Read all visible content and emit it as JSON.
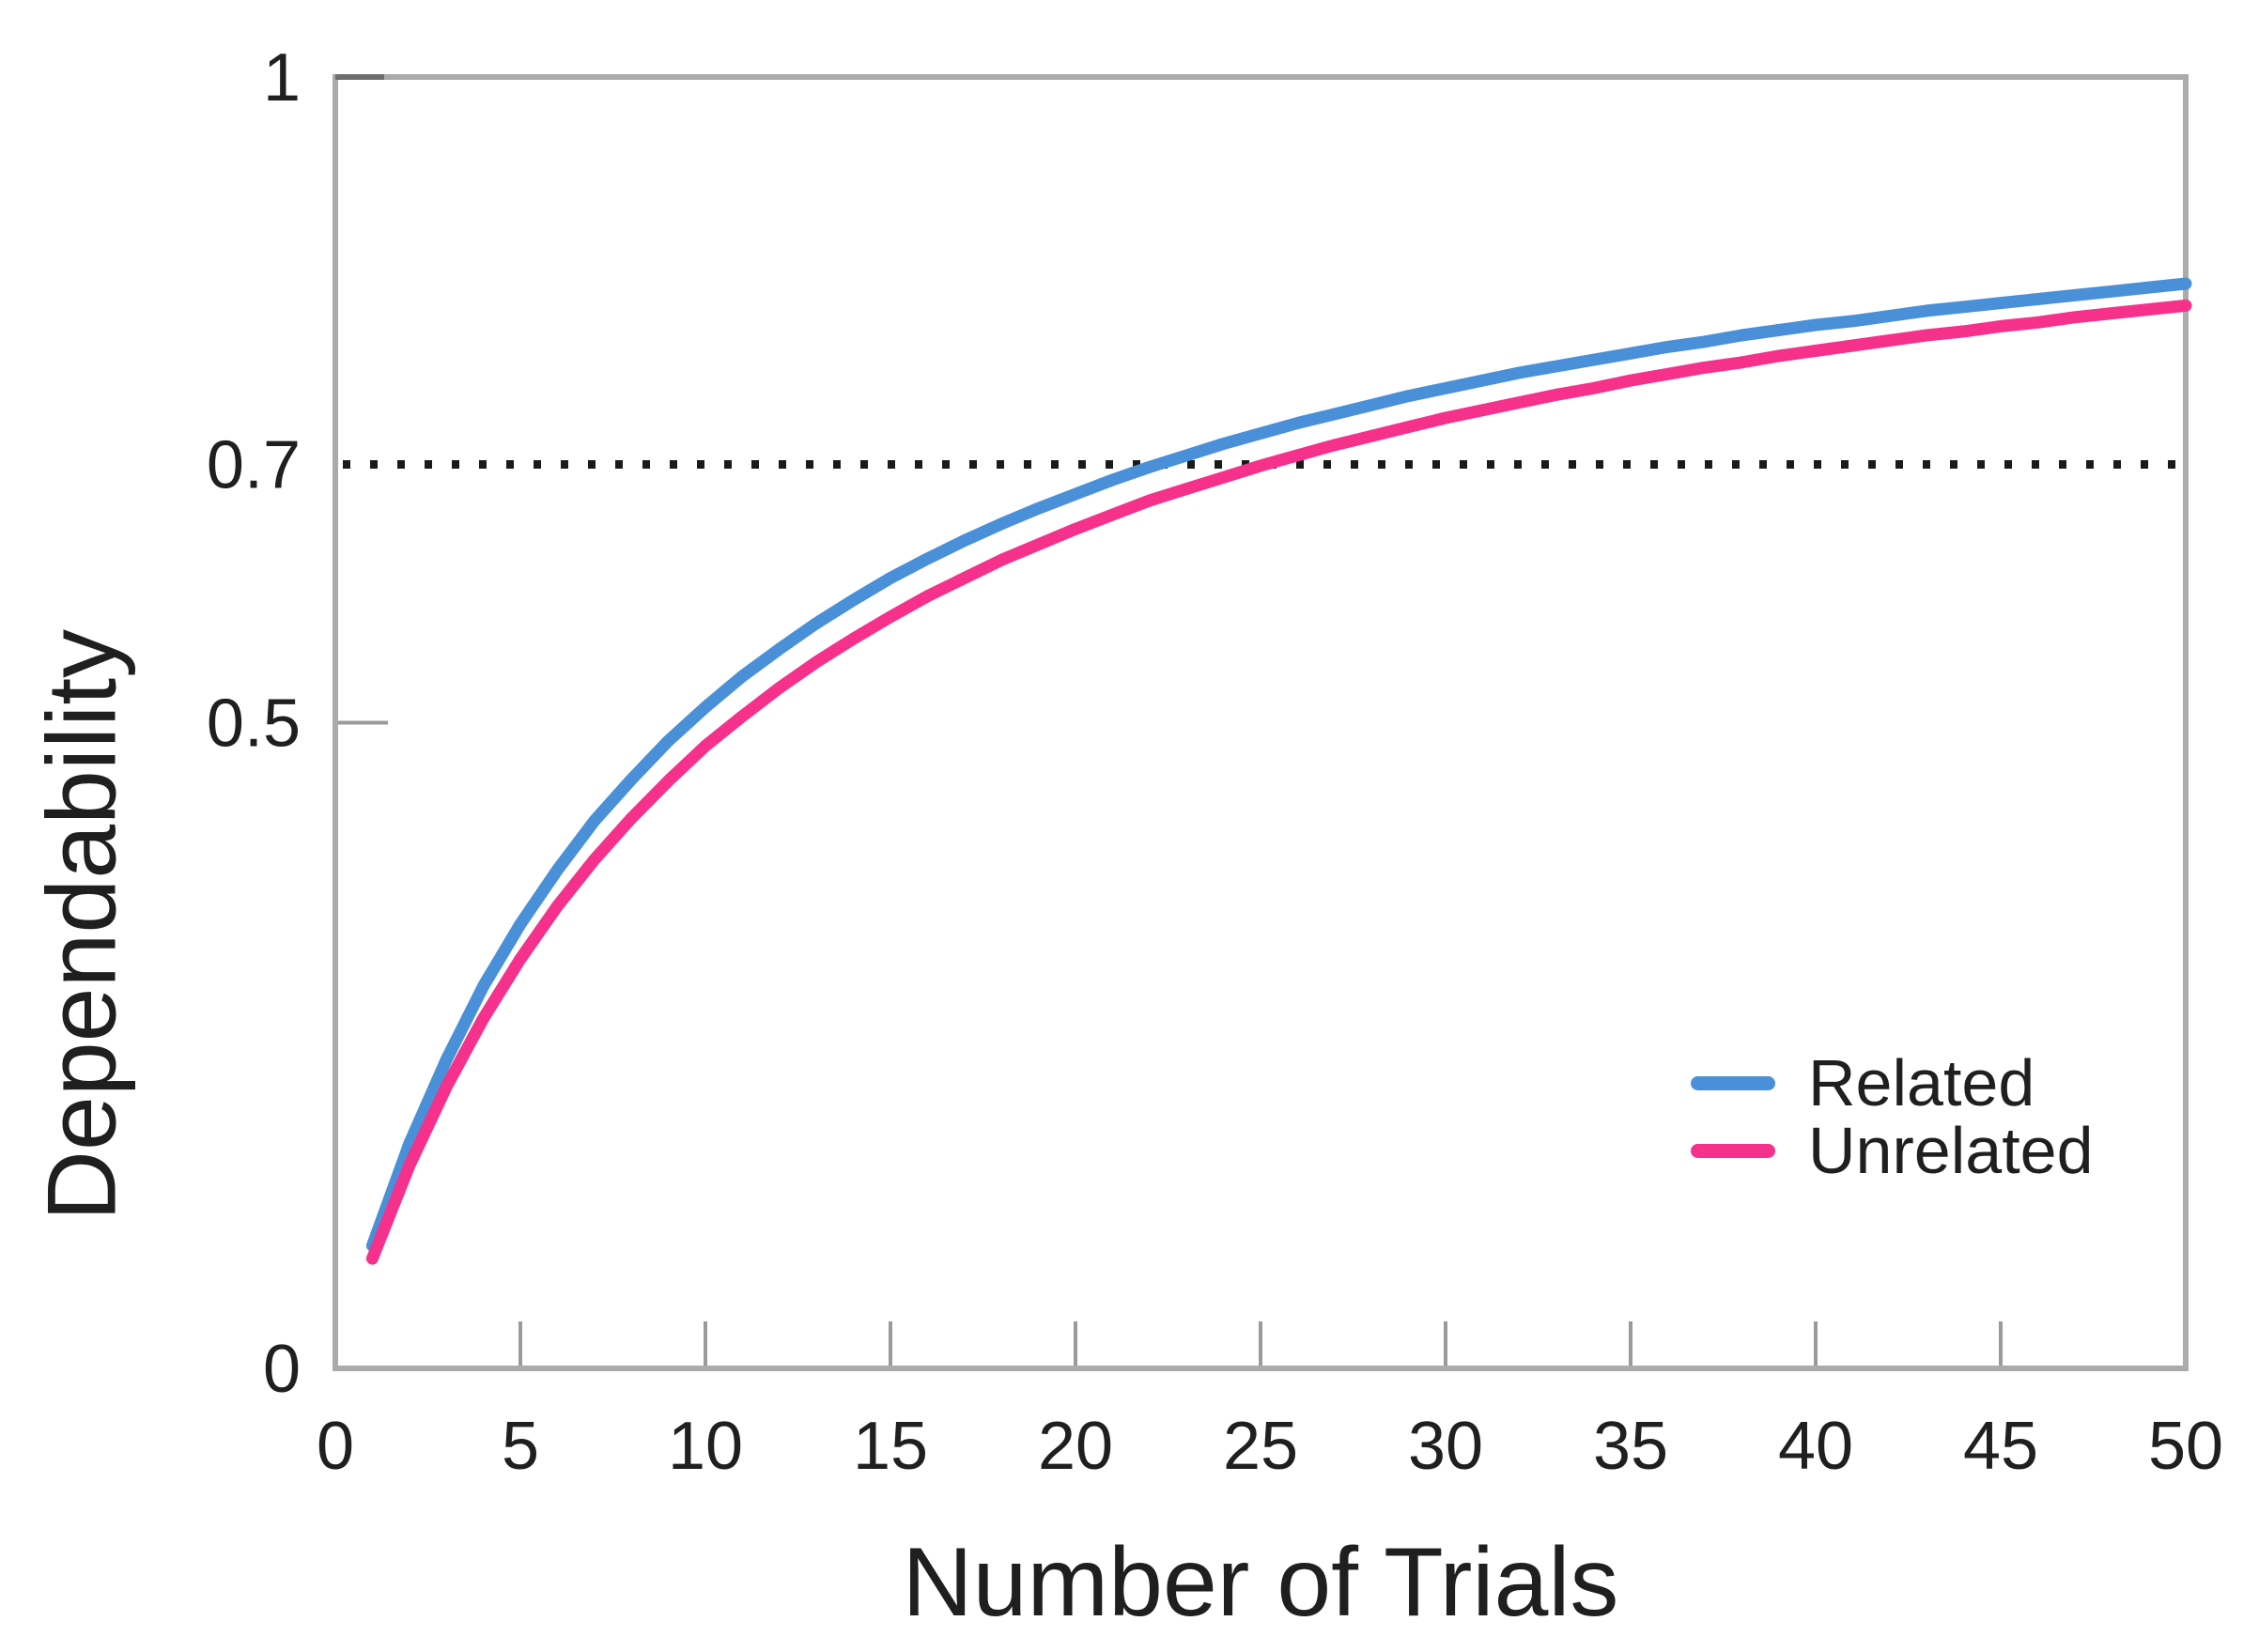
{
  "chart_data": {
    "type": "line",
    "title": "",
    "xlabel": "Number of Trials",
    "ylabel": "Dependability",
    "xlim": [
      0,
      50
    ],
    "ylim": [
      0,
      1
    ],
    "grid": false,
    "legend_position": "lower right",
    "x_ticks": [
      0,
      5,
      10,
      15,
      20,
      25,
      30,
      35,
      40,
      45,
      50
    ],
    "y_ticks": [
      {
        "value": 0,
        "label": "0"
      },
      {
        "value": 0.5,
        "label": "0.5"
      },
      {
        "value": 0.7,
        "label": "0.7"
      },
      {
        "value": 1,
        "label": "1"
      }
    ],
    "reference_line": {
      "y": 0.7,
      "style": "dotted",
      "color": "#1a1a1a"
    },
    "x": [
      1,
      2,
      3,
      4,
      5,
      6,
      7,
      8,
      9,
      10,
      11,
      12,
      13,
      14,
      15,
      16,
      17,
      18,
      19,
      20,
      21,
      22,
      23,
      24,
      25,
      26,
      27,
      28,
      29,
      30,
      31,
      32,
      33,
      34,
      35,
      36,
      37,
      38,
      39,
      40,
      41,
      42,
      43,
      44,
      45,
      46,
      47,
      48,
      49,
      50
    ],
    "series": [
      {
        "name": "Related",
        "color": "#4A90D8",
        "values": [
          0.095,
          0.174,
          0.239,
          0.296,
          0.344,
          0.386,
          0.424,
          0.456,
          0.486,
          0.512,
          0.536,
          0.557,
          0.577,
          0.595,
          0.612,
          0.627,
          0.641,
          0.654,
          0.666,
          0.677,
          0.688,
          0.698,
          0.707,
          0.716,
          0.724,
          0.732,
          0.739,
          0.746,
          0.753,
          0.759,
          0.765,
          0.771,
          0.776,
          0.781,
          0.786,
          0.791,
          0.795,
          0.8,
          0.804,
          0.808,
          0.811,
          0.815,
          0.819,
          0.822,
          0.825,
          0.828,
          0.831,
          0.834,
          0.837,
          0.84
        ]
      },
      {
        "name": "Unrelated",
        "color": "#F5318C",
        "values": [
          0.085,
          0.157,
          0.218,
          0.271,
          0.317,
          0.358,
          0.394,
          0.426,
          0.455,
          0.482,
          0.505,
          0.527,
          0.547,
          0.565,
          0.582,
          0.598,
          0.612,
          0.626,
          0.638,
          0.65,
          0.661,
          0.672,
          0.681,
          0.69,
          0.699,
          0.707,
          0.715,
          0.722,
          0.729,
          0.736,
          0.742,
          0.748,
          0.754,
          0.759,
          0.765,
          0.77,
          0.775,
          0.779,
          0.784,
          0.788,
          0.792,
          0.796,
          0.8,
          0.803,
          0.807,
          0.81,
          0.814,
          0.817,
          0.82,
          0.823
        ]
      }
    ],
    "colors": {
      "frame": "#ababab",
      "tick": "#9a9a9a",
      "text": "#1f1f1f",
      "dotted": "#1a1a1a"
    }
  }
}
